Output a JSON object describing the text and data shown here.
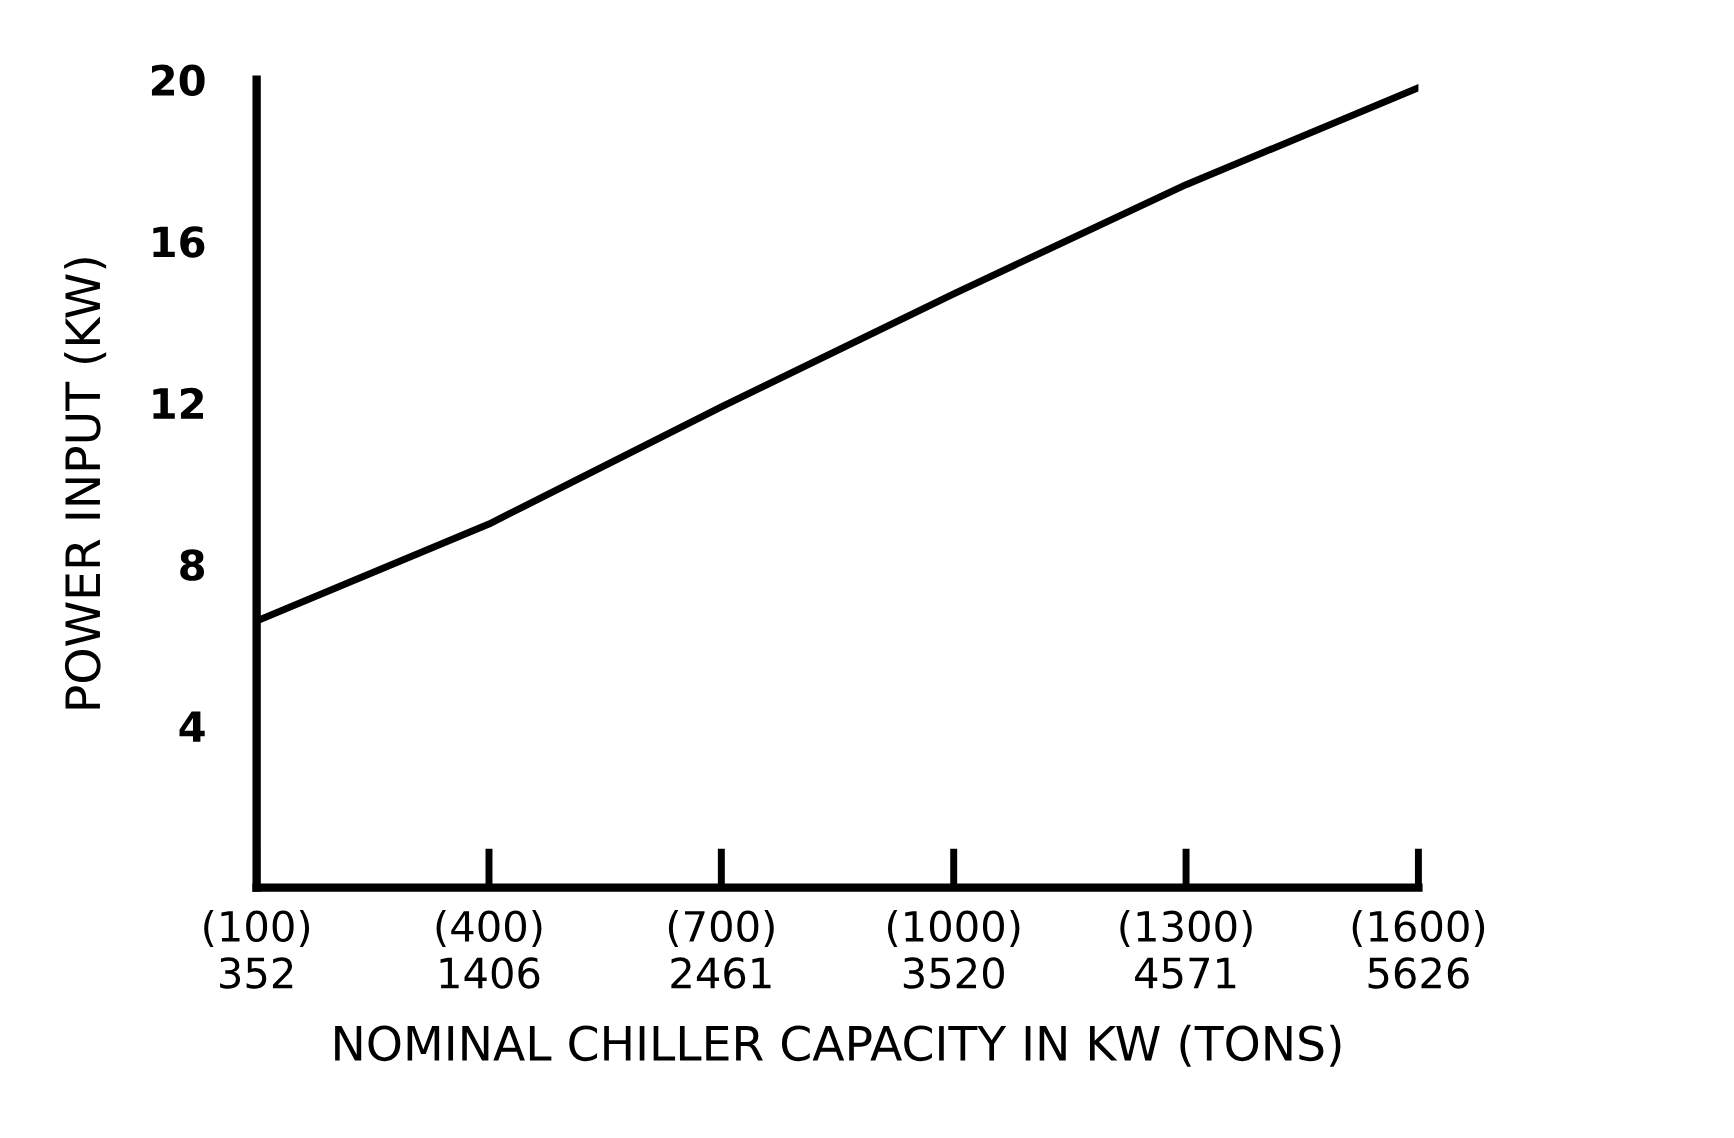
{
  "chart_data": {
    "type": "line",
    "xlabel": "NOMINAL CHILLER CAPACITY IN KW (TONS)",
    "ylabel": "POWER INPUT (KW)",
    "categories": [
      "(100)\n352",
      "(400)\n1406",
      "(700)\n2461",
      "(1000)\n3520",
      "(1300)\n4571",
      "(1600)\n5626"
    ],
    "series": [
      {
        "color": "#000000",
        "values": [
          6.6,
          9.0,
          11.9,
          14.7,
          17.4,
          19.8
        ]
      }
    ],
    "ylim": [
      0,
      20
    ],
    "yticks": [
      4,
      8,
      12,
      16,
      20
    ],
    "grid": false,
    "legend": false,
    "marker": "none",
    "line_style": "solid"
  }
}
